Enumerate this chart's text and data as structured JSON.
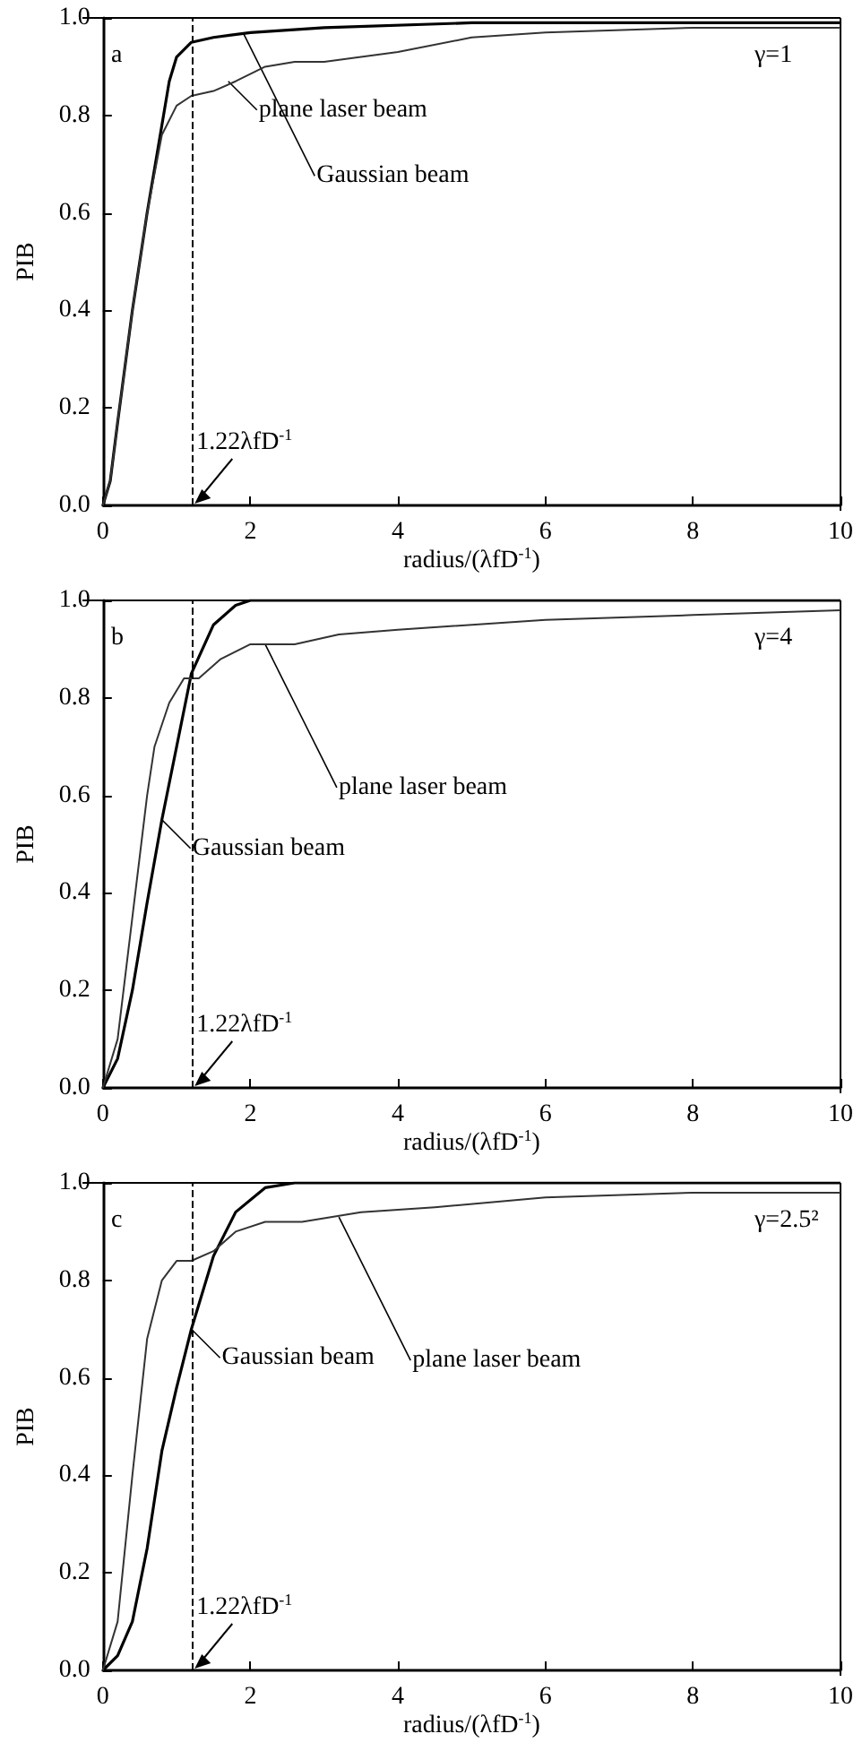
{
  "chart_data": [
    {
      "type": "line",
      "xlabel": "radius/(λfD$^{-1}$)",
      "ylabel": "PIB",
      "xlim": [
        0,
        10
      ],
      "xticks": [
        0,
        2,
        4,
        6,
        8,
        10
      ],
      "ylim": [
        0,
        1
      ],
      "yticks": [
        {
          "value": 0,
          "label": "0.0"
        },
        {
          "value": 0.2,
          "label": "0.2"
        },
        {
          "value": 0.4,
          "label": "0.4"
        },
        {
          "value": 0.6,
          "label": "0.6"
        },
        {
          "value": 0.8,
          "label": "0.8"
        },
        {
          "value": 1,
          "label": "1.0"
        }
      ],
      "grid": false,
      "series": [
        {
          "color": "#000000",
          "x": [
            0,
            0.1,
            0.2,
            0.4,
            0.6,
            0.8,
            0.9,
            1.0,
            1.2,
            1.5,
            2,
            3,
            5,
            10
          ],
          "values": [
            0,
            0.05,
            0.17,
            0.4,
            0.6,
            0.78,
            0.87,
            0.92,
            0.95,
            0.96,
            0.97,
            0.98,
            0.99,
            0.99
          ]
        },
        {
          "color": "#333333",
          "x": [
            0,
            0.1,
            0.2,
            0.4,
            0.6,
            0.8,
            1.0,
            1.2,
            1.5,
            1.8,
            2.2,
            2.6,
            3,
            4,
            5,
            6,
            8,
            10
          ],
          "values": [
            0,
            0.05,
            0.17,
            0.4,
            0.6,
            0.76,
            0.82,
            0.84,
            0.85,
            0.87,
            0.9,
            0.91,
            0.91,
            0.93,
            0.96,
            0.97,
            0.98,
            0.98
          ]
        }
      ],
      "ref_lines": [
        {
          "axis": "x",
          "value": 1.22,
          "label": "1.22λfD$^{-1}$",
          "line_style": "dashed"
        }
      ],
      "annotations": [
        "a",
        "γ=1",
        {
          "text": "Gaussian beam",
          "x": 1.9,
          "y": 0.97
        },
        {
          "text": "plane laser beam",
          "x": 1.7,
          "y": 0.87
        }
      ]
    },
    {
      "type": "line",
      "xlabel": "radius/(λfD$^{-1}$)",
      "ylabel": "PIB",
      "xlim": [
        0,
        10
      ],
      "xticks": [
        0,
        2,
        4,
        6,
        8,
        10
      ],
      "ylim": [
        0,
        1
      ],
      "yticks": [
        {
          "value": 0,
          "label": "0.0"
        },
        {
          "value": 0.2,
          "label": "0.2"
        },
        {
          "value": 0.4,
          "label": "0.4"
        },
        {
          "value": 0.6,
          "label": "0.6"
        },
        {
          "value": 0.8,
          "label": "0.8"
        },
        {
          "value": 1,
          "label": "1.0"
        }
      ],
      "grid": false,
      "series": [
        {
          "color": "#000000",
          "x": [
            0,
            0.2,
            0.4,
            0.6,
            0.8,
            1.0,
            1.2,
            1.5,
            1.8,
            2,
            10
          ],
          "values": [
            0,
            0.06,
            0.2,
            0.38,
            0.55,
            0.7,
            0.85,
            0.95,
            0.99,
            1.0,
            1.0
          ]
        },
        {
          "color": "#333333",
          "x": [
            0,
            0.2,
            0.4,
            0.6,
            0.7,
            0.9,
            1.1,
            1.3,
            1.6,
            2,
            2.6,
            3.2,
            4,
            6,
            8,
            10
          ],
          "values": [
            0,
            0.1,
            0.35,
            0.6,
            0.7,
            0.79,
            0.84,
            0.84,
            0.88,
            0.91,
            0.91,
            0.93,
            0.94,
            0.96,
            0.97,
            0.98
          ]
        }
      ],
      "ref_lines": [
        {
          "axis": "x",
          "value": 1.22,
          "label": "1.22λfD$^{-1}$",
          "line_style": "dashed"
        }
      ],
      "annotations": [
        "b",
        "γ=4",
        {
          "text": "plane laser beam",
          "x": 2.2,
          "y": 0.91
        },
        {
          "text": "Gaussian beam",
          "x": 0.8,
          "y": 0.55
        }
      ]
    },
    {
      "type": "line",
      "xlabel": "radius/(λfD$^{-1}$)",
      "ylabel": "PIB",
      "xlim": [
        0,
        10
      ],
      "xticks": [
        0,
        2,
        4,
        6,
        8,
        10
      ],
      "ylim": [
        0,
        1
      ],
      "yticks": [
        {
          "value": 0,
          "label": "0.0"
        },
        {
          "value": 0.2,
          "label": "0.2"
        },
        {
          "value": 0.4,
          "label": "0.4"
        },
        {
          "value": 0.6,
          "label": "0.6"
        },
        {
          "value": 0.8,
          "label": "0.8"
        },
        {
          "value": 1,
          "label": "1.0"
        }
      ],
      "grid": false,
      "series": [
        {
          "color": "#000000",
          "x": [
            0,
            0.2,
            0.4,
            0.6,
            0.8,
            1.0,
            1.2,
            1.5,
            1.8,
            2.2,
            2.6,
            10
          ],
          "values": [
            0,
            0.03,
            0.1,
            0.25,
            0.45,
            0.58,
            0.7,
            0.85,
            0.94,
            0.99,
            1.0,
            1.0
          ]
        },
        {
          "color": "#333333",
          "x": [
            0,
            0.2,
            0.4,
            0.6,
            0.8,
            1.0,
            1.2,
            1.5,
            1.8,
            2.2,
            2.7,
            3.5,
            4.5,
            6,
            8,
            10
          ],
          "values": [
            0,
            0.1,
            0.4,
            0.68,
            0.8,
            0.84,
            0.84,
            0.86,
            0.9,
            0.92,
            0.92,
            0.94,
            0.95,
            0.97,
            0.98,
            0.98
          ]
        }
      ],
      "ref_lines": [
        {
          "axis": "x",
          "value": 1.22,
          "label": "1.22λfD$^{-1}$",
          "line_style": "dashed"
        }
      ],
      "annotations": [
        "c",
        "γ=2.5²",
        {
          "text": "plane laser beam",
          "x": 3.2,
          "y": 0.93
        },
        {
          "text": "Gaussian beam",
          "x": 1.2,
          "y": 0.7
        }
      ]
    }
  ]
}
